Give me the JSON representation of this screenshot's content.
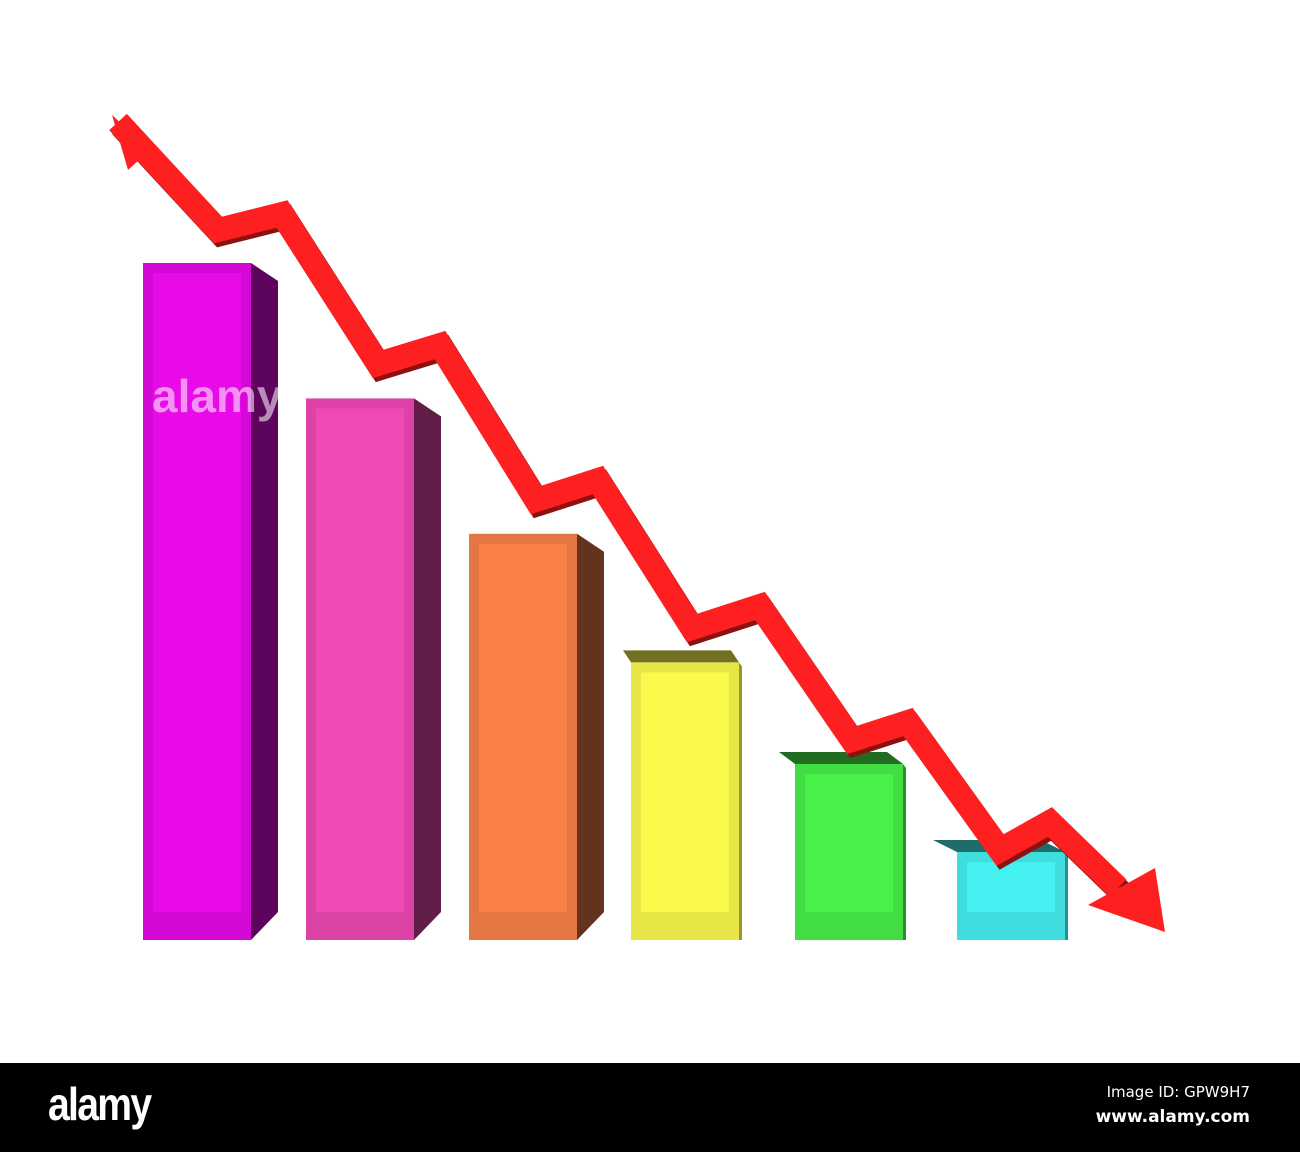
{
  "chart_data": {
    "type": "bar",
    "style": "3d-bars-with-downward-trend-arrow",
    "title": "",
    "xlabel": "",
    "ylabel": "",
    "categories": [
      "",
      "",
      "",
      "",
      "",
      ""
    ],
    "values": [
      100,
      80,
      60,
      41,
      26,
      13
    ],
    "ylim": [
      0,
      100
    ],
    "grid": false,
    "legend": "none",
    "bar_colors": [
      "#e80ae8",
      "#f048b4",
      "#f88048",
      "#fafa4c",
      "#48f048",
      "#44f0f0"
    ],
    "trend_arrow_color": "#fe2020",
    "trend_direction": "down"
  },
  "watermark": "alamy",
  "footer": {
    "logo": "alamy",
    "image_id": "Image ID: GPW9H7",
    "url": "www.alamy.com"
  }
}
